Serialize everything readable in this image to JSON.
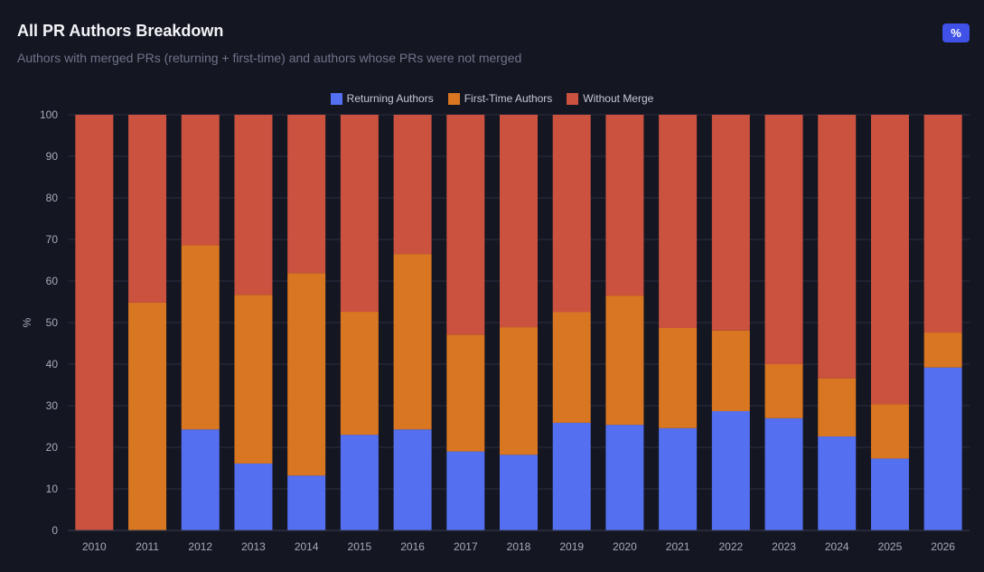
{
  "header": {
    "title": "All PR Authors Breakdown",
    "subtitle": "Authors with merged PRs (returning + first-time) and authors whose PRs were not merged",
    "toggle_label": "%"
  },
  "chart_data": {
    "type": "bar",
    "stacked": true,
    "ylabel": "%",
    "xlabel": "",
    "ylim": [
      0,
      100
    ],
    "yticks": [
      0,
      10,
      20,
      30,
      40,
      50,
      60,
      70,
      80,
      90,
      100
    ],
    "legend_position": "top-center",
    "grid": true,
    "categories": [
      "2010",
      "2011",
      "2012",
      "2013",
      "2014",
      "2015",
      "2016",
      "2017",
      "2018",
      "2019",
      "2020",
      "2021",
      "2022",
      "2023",
      "2024",
      "2025",
      "2026"
    ],
    "series": [
      {
        "name": "Returning Authors",
        "color": "#5470f0",
        "values": [
          0,
          0,
          24.3,
          16.1,
          13.2,
          23,
          24.3,
          19,
          18.2,
          25.9,
          25.4,
          24.6,
          28.7,
          27,
          22.6,
          17.3,
          39.2
        ]
      },
      {
        "name": "First-Time Authors",
        "color": "#d97621",
        "values": [
          0,
          54.8,
          44.3,
          40.6,
          48.7,
          29.6,
          42.2,
          28.1,
          30.7,
          26.6,
          31.1,
          24.1,
          19.4,
          13,
          14,
          13.1,
          8.4
        ]
      },
      {
        "name": "Without Merge",
        "color": "#cc5240",
        "values": [
          100,
          45.2,
          31.4,
          43.3,
          38.1,
          47.4,
          33.5,
          52.9,
          51.1,
          47.5,
          43.5,
          51.3,
          51.9,
          60,
          63.4,
          69.6,
          52.4
        ]
      }
    ]
  }
}
